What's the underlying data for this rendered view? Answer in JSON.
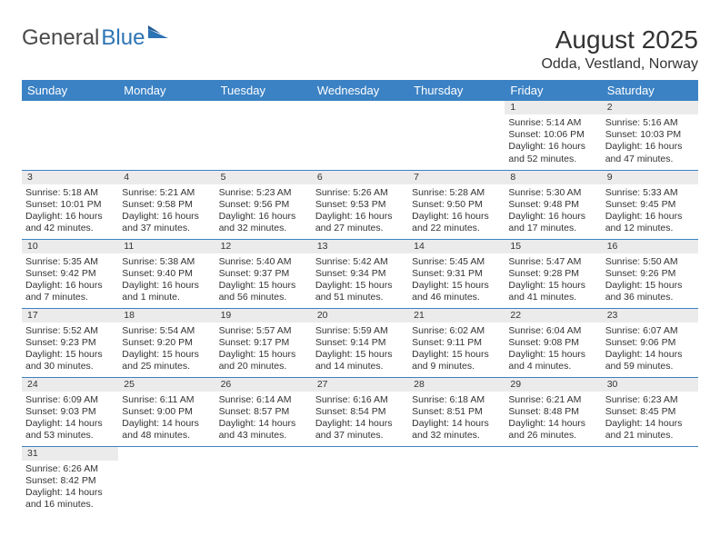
{
  "logo": {
    "text1": "General",
    "text2": "Blue"
  },
  "title": "August 2025",
  "location": "Odda, Vestland, Norway",
  "colors": {
    "header_bg": "#3b82c4",
    "header_text": "#ffffff",
    "daynum_bg": "#ebebeb",
    "border": "#3b82c4",
    "text": "#333333",
    "logo_gray": "#4a4a4a",
    "logo_blue": "#2d74b5"
  },
  "day_headers": [
    "Sunday",
    "Monday",
    "Tuesday",
    "Wednesday",
    "Thursday",
    "Friday",
    "Saturday"
  ],
  "weeks": [
    [
      {
        "n": "",
        "sr": "",
        "ss": "",
        "dl": ""
      },
      {
        "n": "",
        "sr": "",
        "ss": "",
        "dl": ""
      },
      {
        "n": "",
        "sr": "",
        "ss": "",
        "dl": ""
      },
      {
        "n": "",
        "sr": "",
        "ss": "",
        "dl": ""
      },
      {
        "n": "",
        "sr": "",
        "ss": "",
        "dl": ""
      },
      {
        "n": "1",
        "sr": "Sunrise: 5:14 AM",
        "ss": "Sunset: 10:06 PM",
        "dl": "Daylight: 16 hours and 52 minutes."
      },
      {
        "n": "2",
        "sr": "Sunrise: 5:16 AM",
        "ss": "Sunset: 10:03 PM",
        "dl": "Daylight: 16 hours and 47 minutes."
      }
    ],
    [
      {
        "n": "3",
        "sr": "Sunrise: 5:18 AM",
        "ss": "Sunset: 10:01 PM",
        "dl": "Daylight: 16 hours and 42 minutes."
      },
      {
        "n": "4",
        "sr": "Sunrise: 5:21 AM",
        "ss": "Sunset: 9:58 PM",
        "dl": "Daylight: 16 hours and 37 minutes."
      },
      {
        "n": "5",
        "sr": "Sunrise: 5:23 AM",
        "ss": "Sunset: 9:56 PM",
        "dl": "Daylight: 16 hours and 32 minutes."
      },
      {
        "n": "6",
        "sr": "Sunrise: 5:26 AM",
        "ss": "Sunset: 9:53 PM",
        "dl": "Daylight: 16 hours and 27 minutes."
      },
      {
        "n": "7",
        "sr": "Sunrise: 5:28 AM",
        "ss": "Sunset: 9:50 PM",
        "dl": "Daylight: 16 hours and 22 minutes."
      },
      {
        "n": "8",
        "sr": "Sunrise: 5:30 AM",
        "ss": "Sunset: 9:48 PM",
        "dl": "Daylight: 16 hours and 17 minutes."
      },
      {
        "n": "9",
        "sr": "Sunrise: 5:33 AM",
        "ss": "Sunset: 9:45 PM",
        "dl": "Daylight: 16 hours and 12 minutes."
      }
    ],
    [
      {
        "n": "10",
        "sr": "Sunrise: 5:35 AM",
        "ss": "Sunset: 9:42 PM",
        "dl": "Daylight: 16 hours and 7 minutes."
      },
      {
        "n": "11",
        "sr": "Sunrise: 5:38 AM",
        "ss": "Sunset: 9:40 PM",
        "dl": "Daylight: 16 hours and 1 minute."
      },
      {
        "n": "12",
        "sr": "Sunrise: 5:40 AM",
        "ss": "Sunset: 9:37 PM",
        "dl": "Daylight: 15 hours and 56 minutes."
      },
      {
        "n": "13",
        "sr": "Sunrise: 5:42 AM",
        "ss": "Sunset: 9:34 PM",
        "dl": "Daylight: 15 hours and 51 minutes."
      },
      {
        "n": "14",
        "sr": "Sunrise: 5:45 AM",
        "ss": "Sunset: 9:31 PM",
        "dl": "Daylight: 15 hours and 46 minutes."
      },
      {
        "n": "15",
        "sr": "Sunrise: 5:47 AM",
        "ss": "Sunset: 9:28 PM",
        "dl": "Daylight: 15 hours and 41 minutes."
      },
      {
        "n": "16",
        "sr": "Sunrise: 5:50 AM",
        "ss": "Sunset: 9:26 PM",
        "dl": "Daylight: 15 hours and 36 minutes."
      }
    ],
    [
      {
        "n": "17",
        "sr": "Sunrise: 5:52 AM",
        "ss": "Sunset: 9:23 PM",
        "dl": "Daylight: 15 hours and 30 minutes."
      },
      {
        "n": "18",
        "sr": "Sunrise: 5:54 AM",
        "ss": "Sunset: 9:20 PM",
        "dl": "Daylight: 15 hours and 25 minutes."
      },
      {
        "n": "19",
        "sr": "Sunrise: 5:57 AM",
        "ss": "Sunset: 9:17 PM",
        "dl": "Daylight: 15 hours and 20 minutes."
      },
      {
        "n": "20",
        "sr": "Sunrise: 5:59 AM",
        "ss": "Sunset: 9:14 PM",
        "dl": "Daylight: 15 hours and 14 minutes."
      },
      {
        "n": "21",
        "sr": "Sunrise: 6:02 AM",
        "ss": "Sunset: 9:11 PM",
        "dl": "Daylight: 15 hours and 9 minutes."
      },
      {
        "n": "22",
        "sr": "Sunrise: 6:04 AM",
        "ss": "Sunset: 9:08 PM",
        "dl": "Daylight: 15 hours and 4 minutes."
      },
      {
        "n": "23",
        "sr": "Sunrise: 6:07 AM",
        "ss": "Sunset: 9:06 PM",
        "dl": "Daylight: 14 hours and 59 minutes."
      }
    ],
    [
      {
        "n": "24",
        "sr": "Sunrise: 6:09 AM",
        "ss": "Sunset: 9:03 PM",
        "dl": "Daylight: 14 hours and 53 minutes."
      },
      {
        "n": "25",
        "sr": "Sunrise: 6:11 AM",
        "ss": "Sunset: 9:00 PM",
        "dl": "Daylight: 14 hours and 48 minutes."
      },
      {
        "n": "26",
        "sr": "Sunrise: 6:14 AM",
        "ss": "Sunset: 8:57 PM",
        "dl": "Daylight: 14 hours and 43 minutes."
      },
      {
        "n": "27",
        "sr": "Sunrise: 6:16 AM",
        "ss": "Sunset: 8:54 PM",
        "dl": "Daylight: 14 hours and 37 minutes."
      },
      {
        "n": "28",
        "sr": "Sunrise: 6:18 AM",
        "ss": "Sunset: 8:51 PM",
        "dl": "Daylight: 14 hours and 32 minutes."
      },
      {
        "n": "29",
        "sr": "Sunrise: 6:21 AM",
        "ss": "Sunset: 8:48 PM",
        "dl": "Daylight: 14 hours and 26 minutes."
      },
      {
        "n": "30",
        "sr": "Sunrise: 6:23 AM",
        "ss": "Sunset: 8:45 PM",
        "dl": "Daylight: 14 hours and 21 minutes."
      }
    ],
    [
      {
        "n": "31",
        "sr": "Sunrise: 6:26 AM",
        "ss": "Sunset: 8:42 PM",
        "dl": "Daylight: 14 hours and 16 minutes."
      },
      {
        "n": "",
        "sr": "",
        "ss": "",
        "dl": ""
      },
      {
        "n": "",
        "sr": "",
        "ss": "",
        "dl": ""
      },
      {
        "n": "",
        "sr": "",
        "ss": "",
        "dl": ""
      },
      {
        "n": "",
        "sr": "",
        "ss": "",
        "dl": ""
      },
      {
        "n": "",
        "sr": "",
        "ss": "",
        "dl": ""
      },
      {
        "n": "",
        "sr": "",
        "ss": "",
        "dl": ""
      }
    ]
  ]
}
